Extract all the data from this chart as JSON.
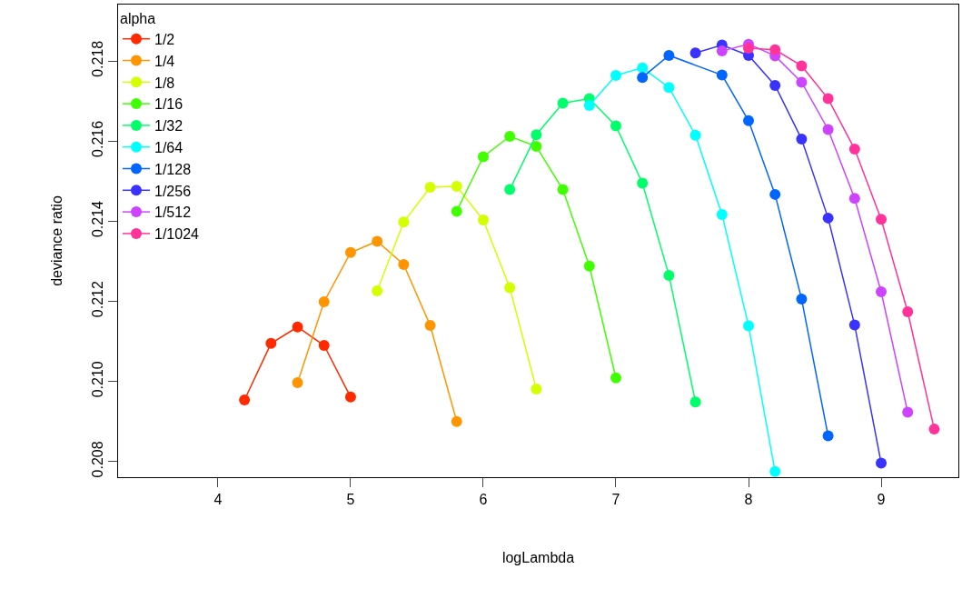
{
  "chart_data": {
    "type": "line",
    "xlabel": "logLambda",
    "ylabel": "deviance ratio",
    "legend_title": "alpha",
    "legend": "top left",
    "marker": "circle",
    "line_style": "solid",
    "xlim": [
      3.247,
      9.582
    ],
    "ylim": [
      0.20761,
      0.21941
    ],
    "xticks": [
      4,
      5,
      6,
      7,
      8,
      9
    ],
    "yticks": [
      0.208,
      {
        "value": 0.21,
        "label": "0.210"
      },
      0.212,
      0.214,
      0.216,
      0.218
    ],
    "series": [
      {
        "name": "1/2",
        "color": "#ff2a00",
        "x": [
          4.2,
          4.4,
          4.6,
          4.8,
          5.0
        ],
        "values": [
          0.20954,
          0.21095,
          0.21136,
          0.2109,
          0.20961
        ]
      },
      {
        "name": "1/4",
        "color": "#ff9500",
        "x": [
          4.6,
          4.8,
          5.0,
          5.2,
          5.4,
          5.6,
          5.8
        ],
        "values": [
          0.20997,
          0.21199,
          0.21322,
          0.2135,
          0.21292,
          0.2114,
          0.209
        ]
      },
      {
        "name": "1/8",
        "color": "#d4ff00",
        "x": [
          5.2,
          5.4,
          5.6,
          5.8,
          6.0,
          6.2,
          6.4
        ],
        "values": [
          0.21226,
          0.21398,
          0.21485,
          0.21487,
          0.21403,
          0.21234,
          0.20981
        ]
      },
      {
        "name": "1/16",
        "color": "#3fff00",
        "x": [
          5.8,
          6.0,
          6.2,
          6.4,
          6.6,
          6.8,
          7.0
        ],
        "values": [
          0.21425,
          0.21561,
          0.21612,
          0.21587,
          0.21479,
          0.21288,
          0.21009
        ]
      },
      {
        "name": "1/32",
        "color": "#00ff6a",
        "x": [
          6.2,
          6.4,
          6.6,
          6.8,
          7.0,
          7.2,
          7.4,
          7.6
        ],
        "values": [
          0.21479,
          0.21616,
          0.21695,
          0.21706,
          0.21638,
          0.21495,
          0.21265,
          0.20949
        ]
      },
      {
        "name": "1/64",
        "color": "#00ffff",
        "x": [
          6.8,
          7.0,
          7.2,
          7.4,
          7.6,
          7.8,
          8.0,
          8.2
        ],
        "values": [
          0.21689,
          0.21764,
          0.21783,
          0.21734,
          0.21615,
          0.21417,
          0.21139,
          0.20775
        ]
      },
      {
        "name": "1/128",
        "color": "#0066ff",
        "x": [
          7.2,
          7.4,
          7.6,
          7.8,
          8.0,
          8.2,
          8.4,
          8.6
        ],
        "values": [
          0.21759,
          0.21814,
          null,
          0.21765,
          0.21651,
          0.21467,
          0.21206,
          0.20864
        ]
      },
      {
        "name": "1/256",
        "color": "#3a33ff",
        "x": [
          7.6,
          7.8,
          8.0,
          8.2,
          8.4,
          8.6,
          8.8,
          9.0
        ],
        "values": [
          0.2182,
          0.2184,
          0.21814,
          0.21739,
          0.21605,
          0.21408,
          0.21141,
          0.20796
        ]
      },
      {
        "name": "1/512",
        "color": "#cc44ff",
        "x": [
          7.8,
          8.0,
          8.2,
          8.4,
          8.6,
          8.8,
          9.0,
          9.2
        ],
        "values": [
          0.21825,
          0.21842,
          0.21813,
          0.21747,
          0.21629,
          0.21457,
          0.21224,
          0.20923
        ]
      },
      {
        "name": "1/1024",
        "color": "#ff3399",
        "x": [
          8.0,
          8.2,
          8.4,
          8.6,
          8.8,
          9.0,
          9.2,
          9.4
        ],
        "values": [
          0.21832,
          0.21828,
          0.21788,
          0.21706,
          0.2158,
          0.21405,
          0.21174,
          0.20881
        ]
      }
    ]
  }
}
